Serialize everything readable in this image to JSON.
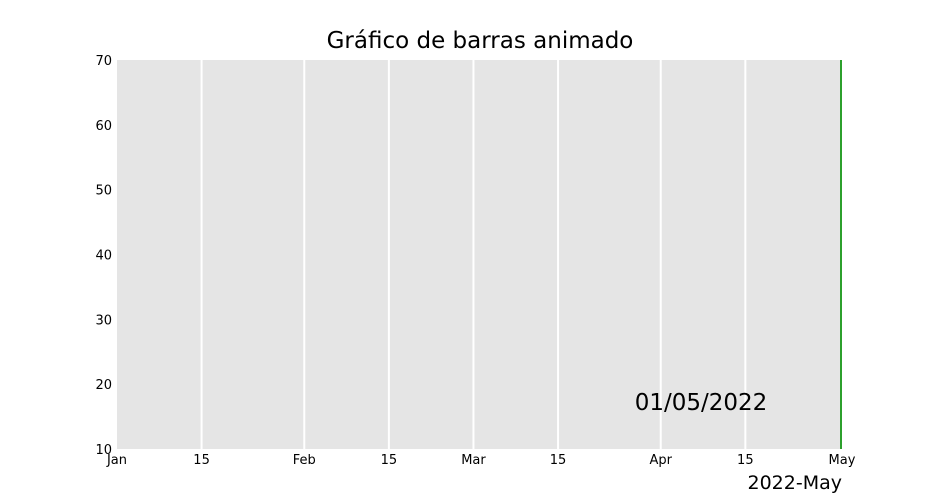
{
  "chart_data": {
    "type": "bar",
    "title": "Gráfico de barras animado",
    "xlabel": "",
    "ylabel": "",
    "x_range": [
      "2022-01-01",
      "2022-05-01"
    ],
    "ylim": [
      10,
      70
    ],
    "y_ticks": [
      10,
      20,
      30,
      40,
      50,
      60,
      70
    ],
    "x_ticks": [
      {
        "date": "2022-01-01",
        "label": "Jan"
      },
      {
        "date": "2022-01-15",
        "label": "15"
      },
      {
        "date": "2022-02-01",
        "label": "Feb"
      },
      {
        "date": "2022-02-15",
        "label": "15"
      },
      {
        "date": "2022-03-01",
        "label": "Mar"
      },
      {
        "date": "2022-03-15",
        "label": "15"
      },
      {
        "date": "2022-04-01",
        "label": "Apr"
      },
      {
        "date": "2022-04-15",
        "label": "15"
      },
      {
        "date": "2022-05-01",
        "label": "May"
      }
    ],
    "grid": true,
    "background_color": "#e5e5e5",
    "grid_color": "#ffffff",
    "marker_line": {
      "date": "2022-05-01",
      "color": "#2ca02c"
    },
    "date_annotation": "01/05/2022",
    "period_label": "2022-May"
  }
}
